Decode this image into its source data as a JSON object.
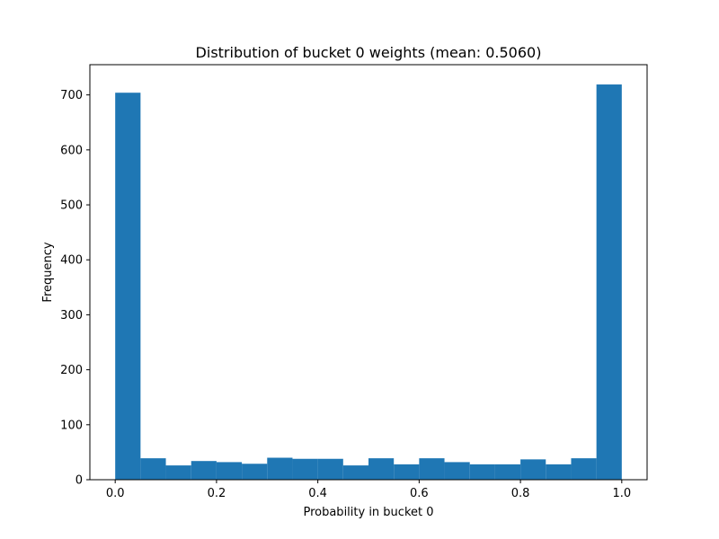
{
  "chart_data": {
    "type": "bar",
    "title": "Distribution of bucket 0 weights (mean: 0.5060)",
    "xlabel": "Probability in bucket 0",
    "ylabel": "Frequency",
    "xlim": [
      -0.05,
      1.05
    ],
    "ylim": [
      0,
      755
    ],
    "xticks": [
      0.0,
      0.2,
      0.4,
      0.6,
      0.8,
      1.0
    ],
    "xtick_labels": [
      "0.0",
      "0.2",
      "0.4",
      "0.6",
      "0.8",
      "1.0"
    ],
    "yticks": [
      0,
      100,
      200,
      300,
      400,
      500,
      600,
      700
    ],
    "ytick_labels": [
      "0",
      "100",
      "200",
      "300",
      "400",
      "500",
      "600",
      "700"
    ],
    "bin_edges": [
      0.0,
      0.05,
      0.1,
      0.15,
      0.2,
      0.25,
      0.3,
      0.35,
      0.4,
      0.45,
      0.5,
      0.55,
      0.6,
      0.65,
      0.7,
      0.75,
      0.8,
      0.85,
      0.9,
      0.95,
      1.0
    ],
    "values": [
      704,
      39,
      26,
      34,
      32,
      29,
      40,
      38,
      38,
      26,
      39,
      28,
      39,
      32,
      28,
      28,
      37,
      28,
      39,
      719
    ],
    "bar_color": "#1f77b4",
    "grid": false,
    "legend": "none"
  }
}
